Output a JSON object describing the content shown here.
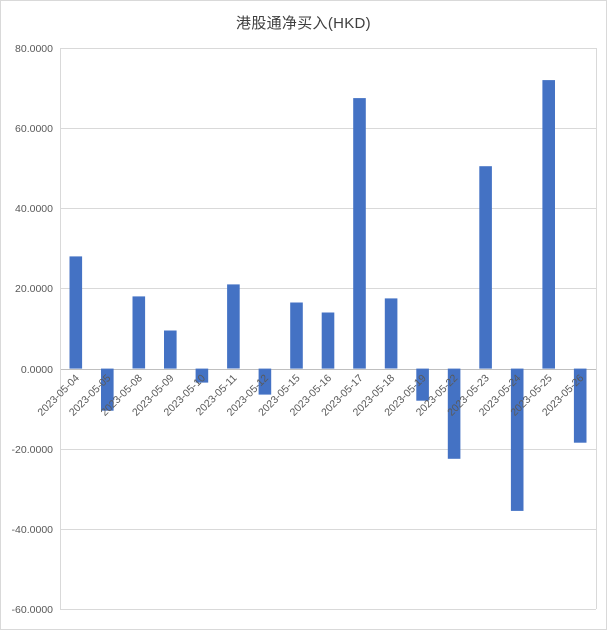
{
  "chart_data": {
    "type": "bar",
    "title": "港股通净买入(HKD)",
    "categories": [
      "2023-05-04",
      "2023-05-05",
      "2023-05-08",
      "2023-05-09",
      "2023-05-10",
      "2023-05-11",
      "2023-05-12",
      "2023-05-15",
      "2023-05-16",
      "2023-05-17",
      "2023-05-18",
      "2023-05-19",
      "2023-05-22",
      "2023-05-23",
      "2023-05-24",
      "2023-05-25",
      "2023-05-26"
    ],
    "values": [
      28.0,
      -10.5,
      18.0,
      9.5,
      -3.5,
      21.0,
      -6.5,
      16.5,
      14.0,
      67.5,
      17.5,
      -8.0,
      -22.5,
      50.5,
      -35.5,
      72.0,
      -18.5
    ],
    "xlabel": "",
    "ylabel": "",
    "ylim": [
      -60,
      80
    ],
    "ytick_step": 20,
    "ytick_decimals": 4,
    "grid": true,
    "legend_position": "none",
    "colors": {
      "bar": "#4472C4",
      "grid": "#d9d9d9",
      "zero_axis": "#bfbfbf",
      "tick_text": "#595959",
      "title_text": "#3f3f3f"
    }
  }
}
